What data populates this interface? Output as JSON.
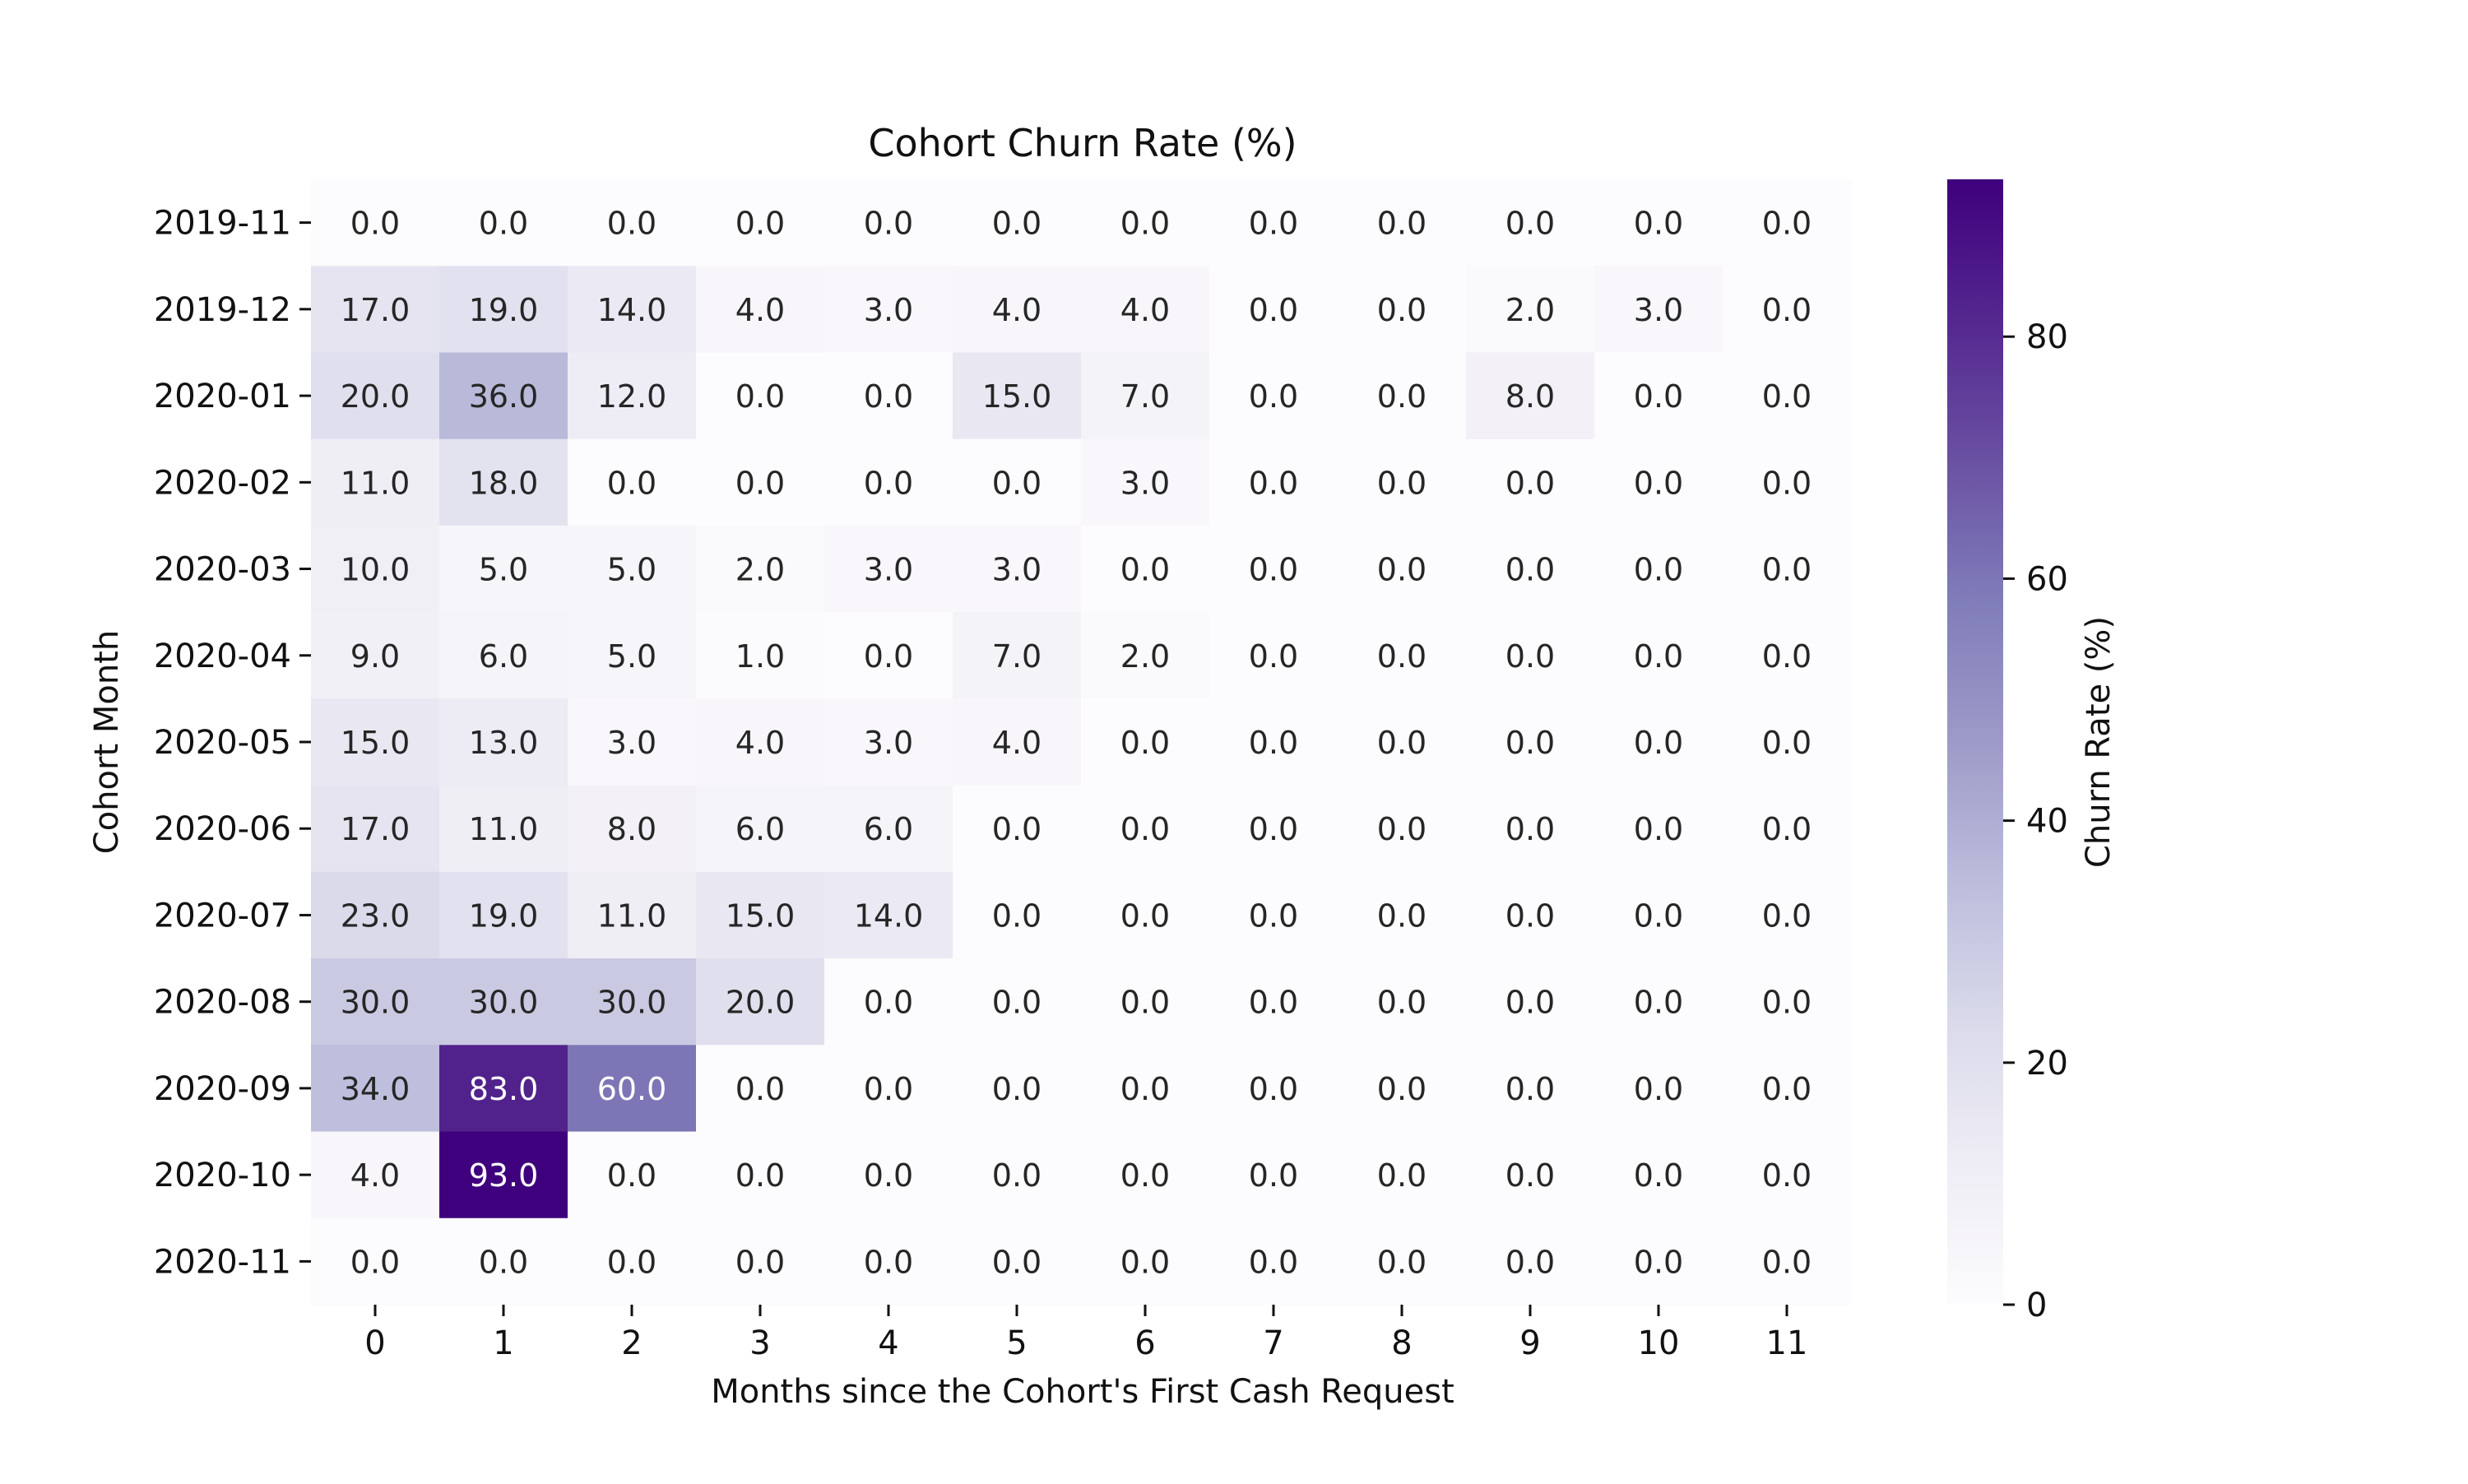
{
  "chart_data": {
    "type": "heatmap",
    "title": "Cohort Churn Rate (%)",
    "xlabel": "Months since the Cohort's First Cash Request",
    "ylabel": "Cohort Month",
    "x": [
      "0",
      "1",
      "2",
      "3",
      "4",
      "5",
      "6",
      "7",
      "8",
      "9",
      "10",
      "11"
    ],
    "y": [
      "2019-11",
      "2019-12",
      "2020-01",
      "2020-02",
      "2020-03",
      "2020-04",
      "2020-05",
      "2020-06",
      "2020-07",
      "2020-08",
      "2020-09",
      "2020-10",
      "2020-11"
    ],
    "values": [
      [
        0,
        0,
        0,
        0,
        0,
        0,
        0,
        0,
        0,
        0,
        0,
        0
      ],
      [
        17,
        19,
        14,
        4,
        3,
        4,
        4,
        0,
        0,
        2,
        3,
        0
      ],
      [
        20,
        36,
        12,
        0,
        0,
        15,
        7,
        0,
        0,
        8,
        0,
        0
      ],
      [
        11,
        18,
        0,
        0,
        0,
        0,
        3,
        0,
        0,
        0,
        0,
        0
      ],
      [
        10,
        5,
        5,
        2,
        3,
        3,
        0,
        0,
        0,
        0,
        0,
        0
      ],
      [
        9,
        6,
        5,
        1,
        0,
        7,
        2,
        0,
        0,
        0,
        0,
        0
      ],
      [
        15,
        13,
        3,
        4,
        3,
        4,
        0,
        0,
        0,
        0,
        0,
        0
      ],
      [
        17,
        11,
        8,
        6,
        6,
        0,
        0,
        0,
        0,
        0,
        0,
        0
      ],
      [
        23,
        19,
        11,
        15,
        14,
        0,
        0,
        0,
        0,
        0,
        0,
        0
      ],
      [
        30,
        30,
        30,
        20,
        0,
        0,
        0,
        0,
        0,
        0,
        0,
        0
      ],
      [
        34,
        83,
        60,
        0,
        0,
        0,
        0,
        0,
        0,
        0,
        0,
        0
      ],
      [
        4,
        93,
        0,
        0,
        0,
        0,
        0,
        0,
        0,
        0,
        0,
        0
      ],
      [
        0,
        0,
        0,
        0,
        0,
        0,
        0,
        0,
        0,
        0,
        0,
        0
      ]
    ],
    "value_format": "0.0",
    "colormap": "Purples",
    "vmin": 0,
    "vmax": 93,
    "colorbar": {
      "label": "Churn Rate (%)",
      "ticks": [
        0,
        20,
        40,
        60,
        80
      ]
    },
    "grid": false,
    "legend": "colorbar-right"
  }
}
